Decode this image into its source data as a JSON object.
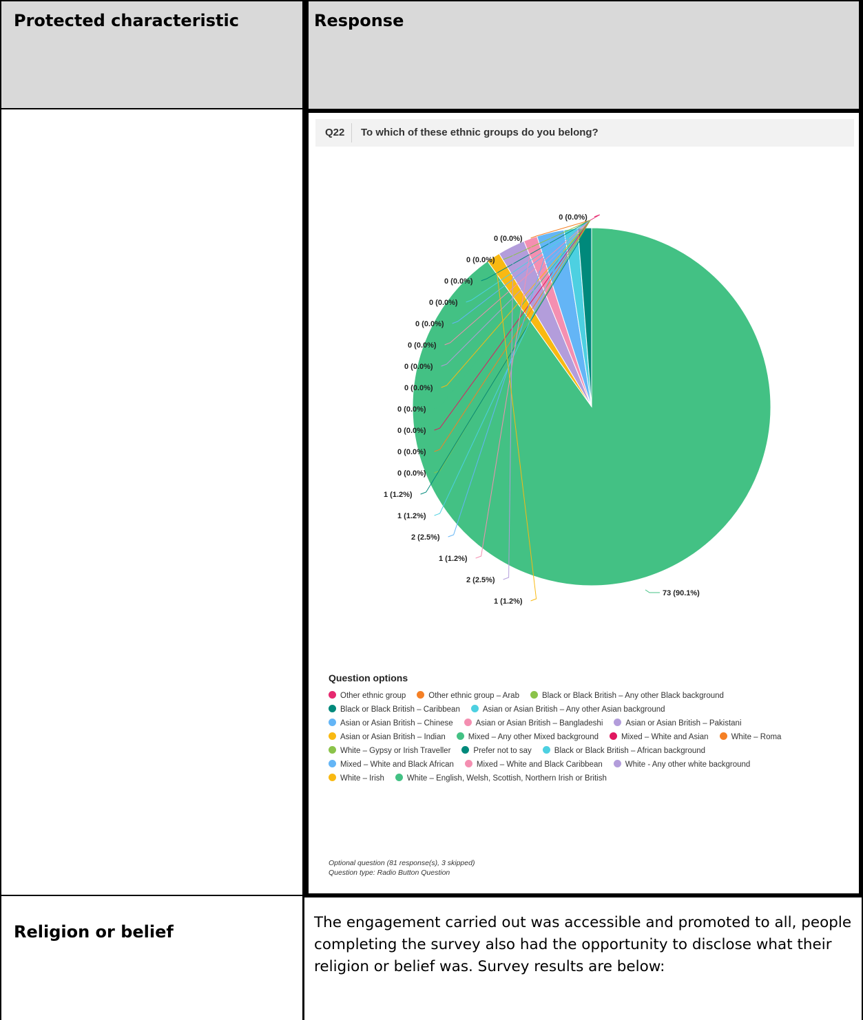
{
  "table": {
    "header_characteristic": "Protected characteristic",
    "header_response": "Response",
    "row2_characteristic": "Religion or belief",
    "row2_response": "The engagement carried out was accessible and promoted to all, people completing the survey also had the opportunity to disclose what their religion or belief was.  Survey results are below:"
  },
  "question": {
    "number": "Q22",
    "text": "To which of these ethnic groups do you belong?"
  },
  "legend_title": "Question options",
  "legend": [
    {
      "name": "Other ethnic group",
      "color": "#e6296f"
    },
    {
      "name": "Other ethnic group – Arab",
      "color": "#f58025"
    },
    {
      "name": "Black or Black British – Any other Black background",
      "color": "#8bc34a"
    },
    {
      "name": "Black or Black British – Caribbean",
      "color": "#00897b"
    },
    {
      "name": "Asian or Asian British – Any other Asian background",
      "color": "#4dd0e1"
    },
    {
      "name": "Asian or Asian British – Chinese",
      "color": "#64b5f6"
    },
    {
      "name": "Asian or Asian British – Bangladeshi",
      "color": "#f48fb1"
    },
    {
      "name": "Asian or Asian British – Pakistani",
      "color": "#b39ddb"
    },
    {
      "name": "Asian or Asian British – Indian",
      "color": "#f9b912"
    },
    {
      "name": "Mixed – Any other Mixed background",
      "color": "#43c184"
    },
    {
      "name": "Mixed – White and Asian",
      "color": "#e0175f"
    },
    {
      "name": "White – Roma",
      "color": "#f58025"
    },
    {
      "name": "White – Gypsy or Irish Traveller",
      "color": "#8bc34a"
    },
    {
      "name": "Prefer not to say",
      "color": "#00897b"
    },
    {
      "name": "Black or Black British – African background",
      "color": "#4dd0e1"
    },
    {
      "name": "Mixed – White and Black African",
      "color": "#64b5f6"
    },
    {
      "name": "Mixed – White and Black Caribbean",
      "color": "#f48fb1"
    },
    {
      "name": "White - Any other white background",
      "color": "#b39ddb"
    },
    {
      "name": "White – Irish",
      "color": "#f9b912"
    },
    {
      "name": "White – English, Welsh, Scottish, Northern Irish or British",
      "color": "#43c184"
    }
  ],
  "footnote_1": "Optional question (81 response(s), 3 skipped)",
  "footnote_2": "Question type: Radio Button Question",
  "chart_data": {
    "type": "pie",
    "title": "To which of these ethnic groups do you belong?",
    "total_responses": 81,
    "slices": [
      {
        "category": "Other ethnic group",
        "value": 0,
        "label": "0 (0.0%)",
        "color": "#e6296f"
      },
      {
        "category": "Other ethnic group – Arab",
        "value": 0,
        "label": "0 (0.0%)",
        "color": "#f58025"
      },
      {
        "category": "Black or Black British – Any other Black background",
        "value": 0,
        "label": "0 (0.0%)",
        "color": "#8bc34a"
      },
      {
        "category": "Black or Black British – Caribbean",
        "value": 0,
        "label": "0 (0.0%)",
        "color": "#00897b"
      },
      {
        "category": "Asian or Asian British – Any other Asian background",
        "value": 0,
        "label": "0 (0.0%)",
        "color": "#4dd0e1"
      },
      {
        "category": "Asian or Asian British – Chinese",
        "value": 0,
        "label": "0 (0.0%)",
        "color": "#64b5f6"
      },
      {
        "category": "Asian or Asian British – Bangladeshi",
        "value": 0,
        "label": "0 (0.0%)",
        "color": "#f48fb1"
      },
      {
        "category": "Asian or Asian British – Pakistani",
        "value": 0,
        "label": "0 (0.0%)",
        "color": "#b39ddb"
      },
      {
        "category": "Asian or Asian British – Indian",
        "value": 0,
        "label": "0 (0.0%)",
        "color": "#f9b912"
      },
      {
        "category": "Mixed – Any other Mixed background",
        "value": 0,
        "label": "0 (0.0%)",
        "color": "#43c184"
      },
      {
        "category": "Mixed – White and Asian",
        "value": 0,
        "label": "0 (0.0%)",
        "color": "#e0175f"
      },
      {
        "category": "White – Roma",
        "value": 0,
        "label": "0 (0.0%)",
        "color": "#f58025"
      },
      {
        "category": "White – Gypsy or Irish Traveller",
        "value": 0,
        "label": "0 (0.0%)",
        "color": "#8bc34a"
      },
      {
        "category": "Prefer not to say",
        "value": 1,
        "label": "1 (1.2%)",
        "color": "#00897b"
      },
      {
        "category": "Black or Black British – African background",
        "value": 1,
        "label": "1 (1.2%)",
        "color": "#4dd0e1"
      },
      {
        "category": "Mixed – White and Black African",
        "value": 2,
        "label": "2 (2.5%)",
        "color": "#64b5f6"
      },
      {
        "category": "Mixed – White and Black Caribbean",
        "value": 1,
        "label": "1 (1.2%)",
        "color": "#f48fb1"
      },
      {
        "category": "White - Any other white background",
        "value": 2,
        "label": "2 (2.5%)",
        "color": "#b39ddb"
      },
      {
        "category": "White – Irish",
        "value": 1,
        "label": "1 (1.2%)",
        "color": "#f9b912"
      },
      {
        "category": "White – English, Welsh, Scottish, Northern Irish or British",
        "value": 73,
        "label": "73 (90.1%)",
        "color": "#43c184"
      }
    ]
  }
}
